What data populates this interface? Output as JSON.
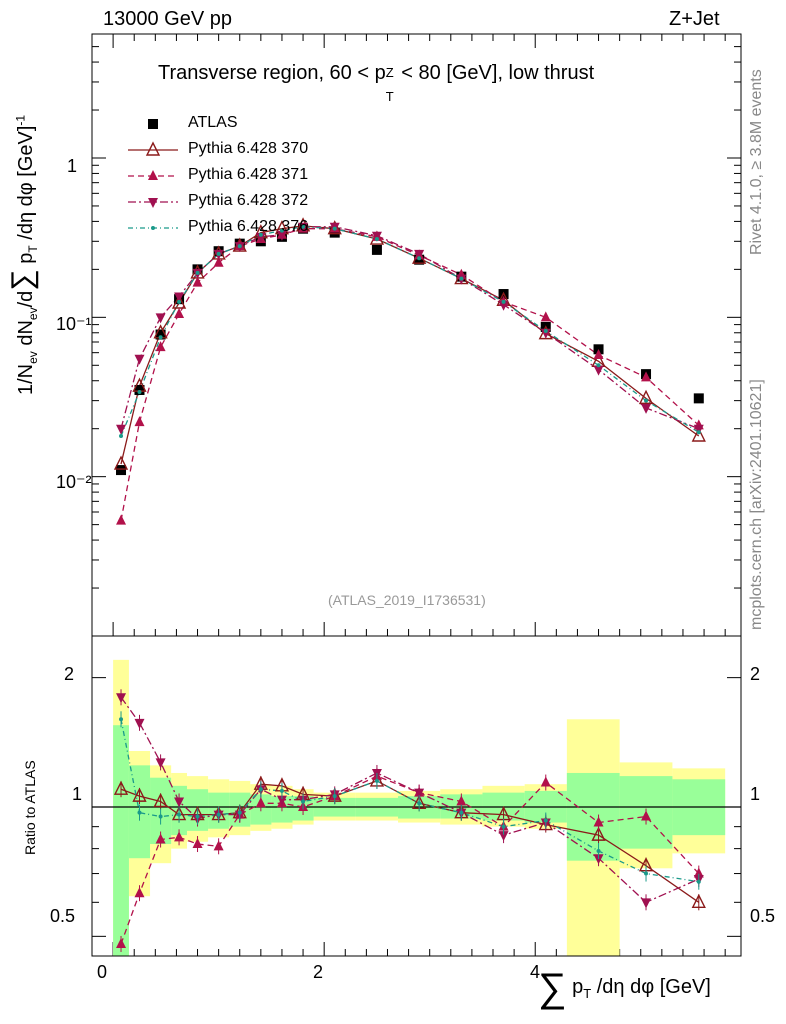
{
  "header": {
    "energy": "13000 GeV pp",
    "process": "Z+Jet"
  },
  "side_labels": {
    "rivet": "Rivet 4.1.0, ≥ 3.8M events",
    "source": "mcplots.cern.ch [arXiv:2401.10621]"
  },
  "colors": {
    "atlas": "#000000",
    "p370": "#8b1a1a",
    "p371": "#b2114a",
    "p372": "#a01050",
    "p376": "#1a9a8a",
    "band_yellow": "#ffff99",
    "band_green": "#99ff99"
  },
  "chart_data": [
    {
      "type": "scatter",
      "title": "Transverse region, 60 < pTZ < 80 [GeV], low thrust",
      "title_parts": {
        "prefix": "Transverse region, 60 < p",
        "sup": "Z",
        "sub": "T",
        "suffix": " < 80 [GeV], low thrust"
      },
      "ylabel": "1/N_ev dN_ev/d∑ pT /dη dφ [GeV]^-1",
      "ylabel_parts": {
        "a": "1/N",
        "a_sub": "ev",
        "b": " dN",
        "b_sub": "ev",
        "c": "/d",
        "sum": "∑",
        "d": " p",
        "d_sub": "T",
        "e": " /dη dφ  [GeV]",
        "e_sup": "-1"
      },
      "yscale": "log",
      "ylim": [
        0.001,
        6
      ],
      "ytick_labels": [
        "10⁻²",
        "10⁻¹",
        "1"
      ],
      "watermark": "(ATLAS_2019_I1736531)",
      "legend": {
        "position": "top-left",
        "entries": [
          "ATLAS",
          "Pythia 6.428 370",
          "Pythia 6.428 371",
          "Pythia 6.428 372",
          "Pythia 6.428 376"
        ]
      },
      "x": [
        0.075,
        0.25,
        0.45,
        0.625,
        0.8,
        1.0,
        1.2,
        1.4,
        1.6,
        1.8,
        2.1,
        2.5,
        2.9,
        3.3,
        3.7,
        4.1,
        4.6,
        5.05,
        5.55
      ],
      "series": [
        {
          "name": "ATLAS",
          "style": "square",
          "values": [
            0.011,
            0.035,
            0.078,
            0.13,
            0.2,
            0.26,
            0.29,
            0.3,
            0.32,
            0.36,
            0.34,
            0.265,
            0.23,
            0.18,
            0.14,
            0.087,
            0.063,
            0.044,
            0.031
          ]
        },
        {
          "name": "Pythia 6.428 370",
          "style": "solid-open-triangle-up",
          "values": [
            0.012,
            0.037,
            0.08,
            0.123,
            0.19,
            0.25,
            0.28,
            0.34,
            0.36,
            0.375,
            0.36,
            0.31,
            0.235,
            0.175,
            0.128,
            0.079,
            0.053,
            0.031,
            0.018
          ]
        },
        {
          "name": "Pythia 6.428 371",
          "style": "dashed-filled-triangle-up",
          "values": [
            0.0053,
            0.022,
            0.065,
            0.105,
            0.165,
            0.22,
            0.28,
            0.31,
            0.33,
            0.36,
            0.36,
            0.32,
            0.245,
            0.185,
            0.125,
            0.1,
            0.058,
            0.042,
            0.021
          ]
        },
        {
          "name": "Pythia 6.428 372",
          "style": "dashdot-filled-triangle-down",
          "values": [
            0.02,
            0.055,
            0.1,
            0.135,
            0.19,
            0.25,
            0.28,
            0.32,
            0.33,
            0.37,
            0.37,
            0.325,
            0.25,
            0.175,
            0.12,
            0.08,
            0.047,
            0.027,
            0.02
          ]
        },
        {
          "name": "Pythia 6.428 376",
          "style": "dashdot-dots",
          "values": [
            0.018,
            0.034,
            0.075,
            0.125,
            0.19,
            0.25,
            0.28,
            0.33,
            0.35,
            0.37,
            0.36,
            0.31,
            0.235,
            0.175,
            0.125,
            0.082,
            0.05,
            0.03,
            0.019
          ]
        }
      ]
    },
    {
      "type": "scatter",
      "ylabel": "Ratio to ATLAS",
      "xlabel": "∑ pT /dη dφ [GeV]",
      "xlabel_parts": {
        "sum": "∑",
        "p": " p",
        "p_sub": "T",
        "rest": " /dη dφ [GeV]"
      },
      "xlim": [
        -0.2,
        5.95
      ],
      "ylim": [
        0.45,
        2.5
      ],
      "yscale": "log",
      "xtick_labels": [
        "0",
        "2",
        "4"
      ],
      "ytick_labels": [
        "0.5",
        "1",
        "2"
      ],
      "reference_line": 1,
      "bands": {
        "x_edges": [
          0.0,
          0.15,
          0.35,
          0.55,
          0.7,
          0.9,
          1.1,
          1.3,
          1.5,
          1.7,
          1.9,
          2.3,
          2.7,
          3.1,
          3.5,
          3.9,
          4.3,
          4.8,
          5.3,
          5.8
        ],
        "green": [
          [
            0.42,
            1.55
          ],
          [
            0.76,
            1.25
          ],
          [
            0.82,
            1.17
          ],
          [
            0.86,
            1.12
          ],
          [
            0.88,
            1.1
          ],
          [
            0.89,
            1.08
          ],
          [
            0.9,
            1.08
          ],
          [
            0.91,
            1.07
          ],
          [
            0.92,
            1.06
          ],
          [
            0.93,
            1.06
          ],
          [
            0.95,
            1.05
          ],
          [
            0.95,
            1.05
          ],
          [
            0.94,
            1.06
          ],
          [
            0.94,
            1.07
          ],
          [
            0.93,
            1.08
          ],
          [
            0.92,
            1.09
          ],
          [
            0.75,
            1.2
          ],
          [
            0.8,
            1.18
          ],
          [
            0.86,
            1.16
          ]
        ],
        "yellow": [
          [
            0.42,
            2.2
          ],
          [
            0.62,
            1.35
          ],
          [
            0.74,
            1.25
          ],
          [
            0.8,
            1.2
          ],
          [
            0.83,
            1.18
          ],
          [
            0.85,
            1.16
          ],
          [
            0.86,
            1.15
          ],
          [
            0.88,
            1.13
          ],
          [
            0.89,
            1.12
          ],
          [
            0.91,
            1.1
          ],
          [
            0.93,
            1.08
          ],
          [
            0.93,
            1.08
          ],
          [
            0.92,
            1.09
          ],
          [
            0.91,
            1.1
          ],
          [
            0.9,
            1.12
          ],
          [
            0.89,
            1.13
          ],
          [
            0.42,
            1.6
          ],
          [
            0.72,
            1.27
          ],
          [
            0.78,
            1.23
          ]
        ]
      },
      "series": [
        {
          "name": "Pythia 6.428 370",
          "values": [
            1.1,
            1.06,
            1.03,
            0.96,
            0.96,
            0.96,
            0.97,
            1.13,
            1.12,
            1.07,
            1.06,
            1.15,
            1.02,
            0.97,
            0.96,
            0.91,
            0.86,
            0.73,
            0.6
          ]
        },
        {
          "name": "Pythia 6.428 371",
          "values": [
            0.48,
            0.63,
            0.84,
            0.85,
            0.82,
            0.81,
            0.96,
            1.02,
            1.02,
            1.0,
            1.06,
            1.18,
            1.08,
            1.03,
            0.9,
            1.14,
            0.92,
            0.95,
            0.7
          ]
        },
        {
          "name": "Pythia 6.428 372",
          "values": [
            1.8,
            1.57,
            1.27,
            1.03,
            0.94,
            0.96,
            0.96,
            1.1,
            1.04,
            1.04,
            1.07,
            1.2,
            1.08,
            0.97,
            0.86,
            0.92,
            0.76,
            0.6,
            0.68
          ]
        },
        {
          "name": "Pythia 6.428 376",
          "values": [
            1.6,
            0.97,
            0.95,
            0.96,
            0.95,
            0.96,
            0.97,
            1.1,
            1.09,
            1.03,
            1.06,
            1.15,
            1.02,
            0.97,
            0.9,
            0.93,
            0.79,
            0.7,
            0.67
          ]
        }
      ]
    }
  ]
}
